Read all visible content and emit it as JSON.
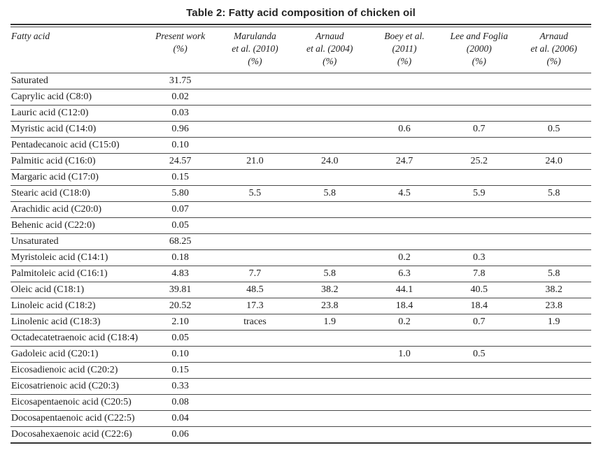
{
  "title": "Table 2: Fatty acid composition of chicken oil",
  "colors": {
    "background": "#ffffff",
    "text": "#1c1c1c",
    "rule_thick": "#333333",
    "rule_thin": "#4a4a4a"
  },
  "table": {
    "columns": [
      {
        "id": "fatty-acid",
        "lines": [
          "Fatty acid"
        ]
      },
      {
        "id": "present-work",
        "lines": [
          "Present work",
          "(%)"
        ]
      },
      {
        "id": "marulanda",
        "lines": [
          "Marulanda",
          "et al. (2010)",
          "(%)"
        ]
      },
      {
        "id": "arnaud-2004",
        "lines": [
          "Arnaud",
          "et al. (2004)",
          "(%)"
        ]
      },
      {
        "id": "boey",
        "lines": [
          "Boey et al.",
          "(2011)",
          "(%)"
        ]
      },
      {
        "id": "lee-foglia",
        "lines": [
          "Lee and Foglia",
          "(2000)",
          "(%)"
        ]
      },
      {
        "id": "arnaud-2006",
        "lines": [
          "Arnaud",
          "et al. (2006)",
          "(%)"
        ]
      }
    ],
    "rows": [
      {
        "fatty_acid": "Saturated",
        "values": [
          "31.75",
          "",
          "",
          "",
          "",
          ""
        ]
      },
      {
        "fatty_acid": "Caprylic acid (C8:0)",
        "values": [
          "0.02",
          "",
          "",
          "",
          "",
          ""
        ]
      },
      {
        "fatty_acid": "Lauric acid (C12:0)",
        "values": [
          "0.03",
          "",
          "",
          "",
          "",
          ""
        ]
      },
      {
        "fatty_acid": "Myristic acid (C14:0)",
        "values": [
          "0.96",
          "",
          "",
          "0.6",
          "0.7",
          "0.5"
        ]
      },
      {
        "fatty_acid": "Pentadecanoic acid (C15:0)",
        "values": [
          "0.10",
          "",
          "",
          "",
          "",
          ""
        ]
      },
      {
        "fatty_acid": "Palmitic acid (C16:0)",
        "values": [
          "24.57",
          "21.0",
          "24.0",
          "24.7",
          "25.2",
          "24.0"
        ]
      },
      {
        "fatty_acid": "Margaric acid (C17:0)",
        "values": [
          "0.15",
          "",
          "",
          "",
          "",
          ""
        ]
      },
      {
        "fatty_acid": "Stearic acid (C18:0)",
        "values": [
          "5.80",
          "5.5",
          "5.8",
          "4.5",
          "5.9",
          "5.8"
        ]
      },
      {
        "fatty_acid": "Arachidic acid (C20:0)",
        "values": [
          "0.07",
          "",
          "",
          "",
          "",
          ""
        ]
      },
      {
        "fatty_acid": "Behenic acid (C22:0)",
        "values": [
          "0.05",
          "",
          "",
          "",
          "",
          ""
        ]
      },
      {
        "fatty_acid": "Unsaturated",
        "values": [
          "68.25",
          "",
          "",
          "",
          "",
          ""
        ]
      },
      {
        "fatty_acid": "Myristoleic acid (C14:1)",
        "values": [
          "0.18",
          "",
          "",
          "0.2",
          "0.3",
          ""
        ]
      },
      {
        "fatty_acid": "Palmitoleic acid (C16:1)",
        "values": [
          "4.83",
          "7.7",
          "5.8",
          "6.3",
          "7.8",
          "5.8"
        ]
      },
      {
        "fatty_acid": "Oleic acid (C18:1)",
        "values": [
          "39.81",
          "48.5",
          "38.2",
          "44.1",
          "40.5",
          "38.2"
        ]
      },
      {
        "fatty_acid": "Linoleic acid (C18:2)",
        "values": [
          "20.52",
          "17.3",
          "23.8",
          "18.4",
          "18.4",
          "23.8"
        ]
      },
      {
        "fatty_acid": "Linolenic acid (C18:3)",
        "values": [
          "2.10",
          "traces",
          "1.9",
          "0.2",
          "0.7",
          "1.9"
        ]
      },
      {
        "fatty_acid": "Octadecatetraenoic acid (C18:4)",
        "values": [
          "0.05",
          "",
          "",
          "",
          "",
          ""
        ]
      },
      {
        "fatty_acid": "Gadoleic acid (C20:1)",
        "values": [
          "0.10",
          "",
          "",
          "1.0",
          "0.5",
          ""
        ]
      },
      {
        "fatty_acid": "Eicosadienoic acid (C20:2)",
        "values": [
          "0.15",
          "",
          "",
          "",
          "",
          ""
        ]
      },
      {
        "fatty_acid": "Eicosatrienoic acid (C20:3)",
        "values": [
          "0.33",
          "",
          "",
          "",
          "",
          ""
        ]
      },
      {
        "fatty_acid": "Eicosapentaenoic acid (C20:5)",
        "values": [
          "0.08",
          "",
          "",
          "",
          "",
          ""
        ]
      },
      {
        "fatty_acid": "Docosapentaenoic acid (C22:5)",
        "values": [
          "0.04",
          "",
          "",
          "",
          "",
          ""
        ]
      },
      {
        "fatty_acid": "Docosahexaenoic acid (C22:6)",
        "values": [
          "0.06",
          "",
          "",
          "",
          "",
          ""
        ]
      }
    ]
  }
}
